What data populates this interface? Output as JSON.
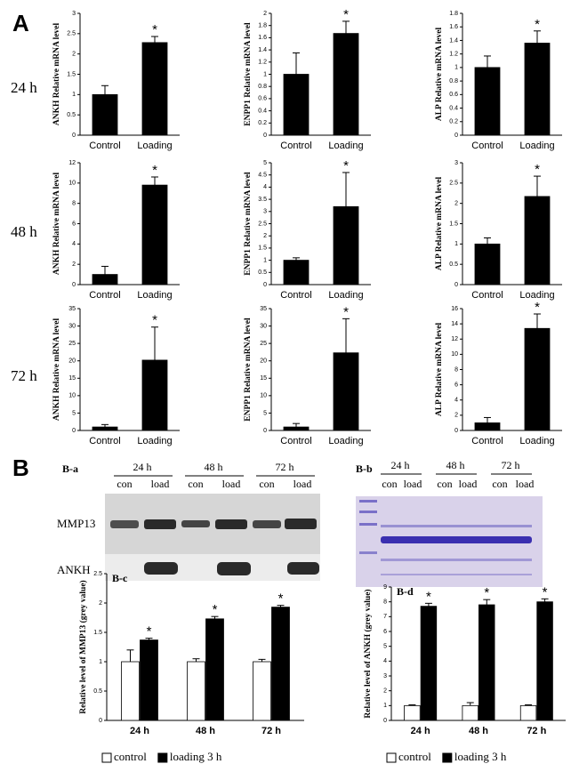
{
  "figure": {
    "panel_a": "A",
    "panel_b": "B",
    "rows": [
      "24 h",
      "48 h",
      "72 h"
    ],
    "blot_a": {
      "title": "B-a",
      "times": [
        "24 h",
        "48 h",
        "72 h"
      ],
      "lanes": [
        "con",
        "load",
        "con",
        "load",
        "con",
        "load"
      ],
      "proteins": [
        "MMP13",
        "ANKH"
      ]
    },
    "blot_b": {
      "title": "B-b",
      "times": [
        "24 h",
        "48 h",
        "72 h"
      ],
      "lanes": [
        "con",
        "load",
        "con",
        "load",
        "con",
        "load"
      ]
    }
  },
  "chart_data": [
    {
      "type": "bar",
      "ylabel": "ANKH Relative mRNA level",
      "categories": [
        "Control",
        "Loading"
      ],
      "values": [
        1.0,
        2.28
      ],
      "errors": [
        0.22,
        0.15
      ],
      "color": "#000000",
      "annotation": "*",
      "ylim": [
        0,
        3
      ],
      "yticks": [
        0,
        0.5,
        1,
        1.5,
        2,
        2.5,
        3
      ]
    },
    {
      "type": "bar",
      "ylabel": "ENPP1 Relative mRNA level",
      "categories": [
        "Control",
        "Loading"
      ],
      "values": [
        1.0,
        1.67
      ],
      "errors": [
        0.35,
        0.2
      ],
      "color": "#000000",
      "annotation": "*",
      "ylim": [
        0,
        2
      ],
      "yticks": [
        0,
        0.2,
        0.4,
        0.6,
        0.8,
        1,
        1.2,
        1.4,
        1.6,
        1.8,
        2
      ]
    },
    {
      "type": "bar",
      "ylabel": "ALP Relative mRNA level",
      "categories": [
        "Control",
        "Loading"
      ],
      "values": [
        1.0,
        1.36
      ],
      "errors": [
        0.17,
        0.18
      ],
      "color": "#000000",
      "annotation": "*",
      "ylim": [
        0,
        1.8
      ],
      "yticks": [
        0,
        0.2,
        0.4,
        0.6,
        0.8,
        1,
        1.2,
        1.4,
        1.6,
        1.8
      ]
    },
    {
      "type": "bar",
      "ylabel": "ANKH Relative mRNA level",
      "categories": [
        "Control",
        "Loading"
      ],
      "values": [
        1.0,
        9.8
      ],
      "errors": [
        0.8,
        0.8
      ],
      "color": "#000000",
      "annotation": "*",
      "ylim": [
        0,
        12
      ],
      "yticks": [
        0,
        2,
        4,
        6,
        8,
        10,
        12
      ]
    },
    {
      "type": "bar",
      "ylabel": "ENPP1 Relative mRNA level",
      "categories": [
        "Control",
        "Loading"
      ],
      "values": [
        1.0,
        3.2
      ],
      "errors": [
        0.1,
        1.4
      ],
      "color": "#000000",
      "annotation": "*",
      "ylim": [
        0,
        5
      ],
      "yticks": [
        0,
        0.5,
        1,
        1.5,
        2,
        2.5,
        3,
        3.5,
        4,
        4.5,
        5
      ]
    },
    {
      "type": "bar",
      "ylabel": "ALP Relative mRNA level",
      "categories": [
        "Control",
        "Loading"
      ],
      "values": [
        1.0,
        2.17
      ],
      "errors": [
        0.15,
        0.5
      ],
      "color": "#000000",
      "annotation": "*",
      "ylim": [
        0,
        3
      ],
      "yticks": [
        0,
        0.5,
        1,
        1.5,
        2,
        2.5,
        3
      ]
    },
    {
      "type": "bar",
      "ylabel": "ANKH Relative mRNA level",
      "categories": [
        "Control",
        "Loading"
      ],
      "values": [
        1.0,
        20.2
      ],
      "errors": [
        0.7,
        9.5
      ],
      "color": "#000000",
      "annotation": "*",
      "ylim": [
        0,
        35
      ],
      "yticks": [
        0,
        5,
        10,
        15,
        20,
        25,
        30,
        35
      ]
    },
    {
      "type": "bar",
      "ylabel": "ENPP1 Relative mRNA level",
      "categories": [
        "Control",
        "Loading"
      ],
      "values": [
        1.0,
        22.3
      ],
      "errors": [
        1.0,
        9.8
      ],
      "color": "#000000",
      "annotation": "*",
      "ylim": [
        0,
        35
      ],
      "yticks": [
        0,
        5,
        10,
        15,
        20,
        25,
        30,
        35
      ]
    },
    {
      "type": "bar",
      "ylabel": "ALP Relative mRNA level",
      "categories": [
        "Control",
        "Loading"
      ],
      "values": [
        1.0,
        13.4
      ],
      "errors": [
        0.7,
        1.9
      ],
      "color": "#000000",
      "annotation": "*",
      "ylim": [
        0,
        16
      ],
      "yticks": [
        0,
        2,
        4,
        6,
        8,
        10,
        12,
        14,
        16
      ]
    },
    {
      "type": "bar",
      "panel": "B-c",
      "ylabel": "Relative level of MMP13 (grey value)",
      "categories": [
        "24 h",
        "48 h",
        "72 h"
      ],
      "annotation": "*",
      "legend": "bottom",
      "series": [
        {
          "name": "control",
          "color": "#ffffff",
          "values": [
            1.0,
            1.0,
            1.0
          ],
          "errors": [
            0.2,
            0.05,
            0.04
          ]
        },
        {
          "name": "loading 3 h",
          "color": "#000000",
          "values": [
            1.37,
            1.73,
            1.93
          ],
          "errors": [
            0.03,
            0.04,
            0.03
          ]
        }
      ],
      "ylim": [
        0,
        2.5
      ],
      "yticks": [
        0,
        0.5,
        1,
        1.5,
        2,
        2.5
      ]
    },
    {
      "type": "bar",
      "panel": "B-d",
      "ylabel": "Relative level of ANKH (grey value)",
      "categories": [
        "24 h",
        "48 h",
        "72 h"
      ],
      "annotation": "*",
      "legend": "bottom",
      "series": [
        {
          "name": "control",
          "color": "#ffffff",
          "values": [
            1.0,
            1.0,
            1.0
          ],
          "errors": [
            0.05,
            0.2,
            0.05
          ]
        },
        {
          "name": "loading 3 h",
          "color": "#000000",
          "values": [
            7.7,
            7.8,
            8.0
          ],
          "errors": [
            0.2,
            0.35,
            0.2
          ]
        }
      ],
      "ylim": [
        0,
        9
      ],
      "yticks": [
        0,
        1,
        2,
        3,
        4,
        5,
        6,
        7,
        8,
        9
      ]
    }
  ]
}
